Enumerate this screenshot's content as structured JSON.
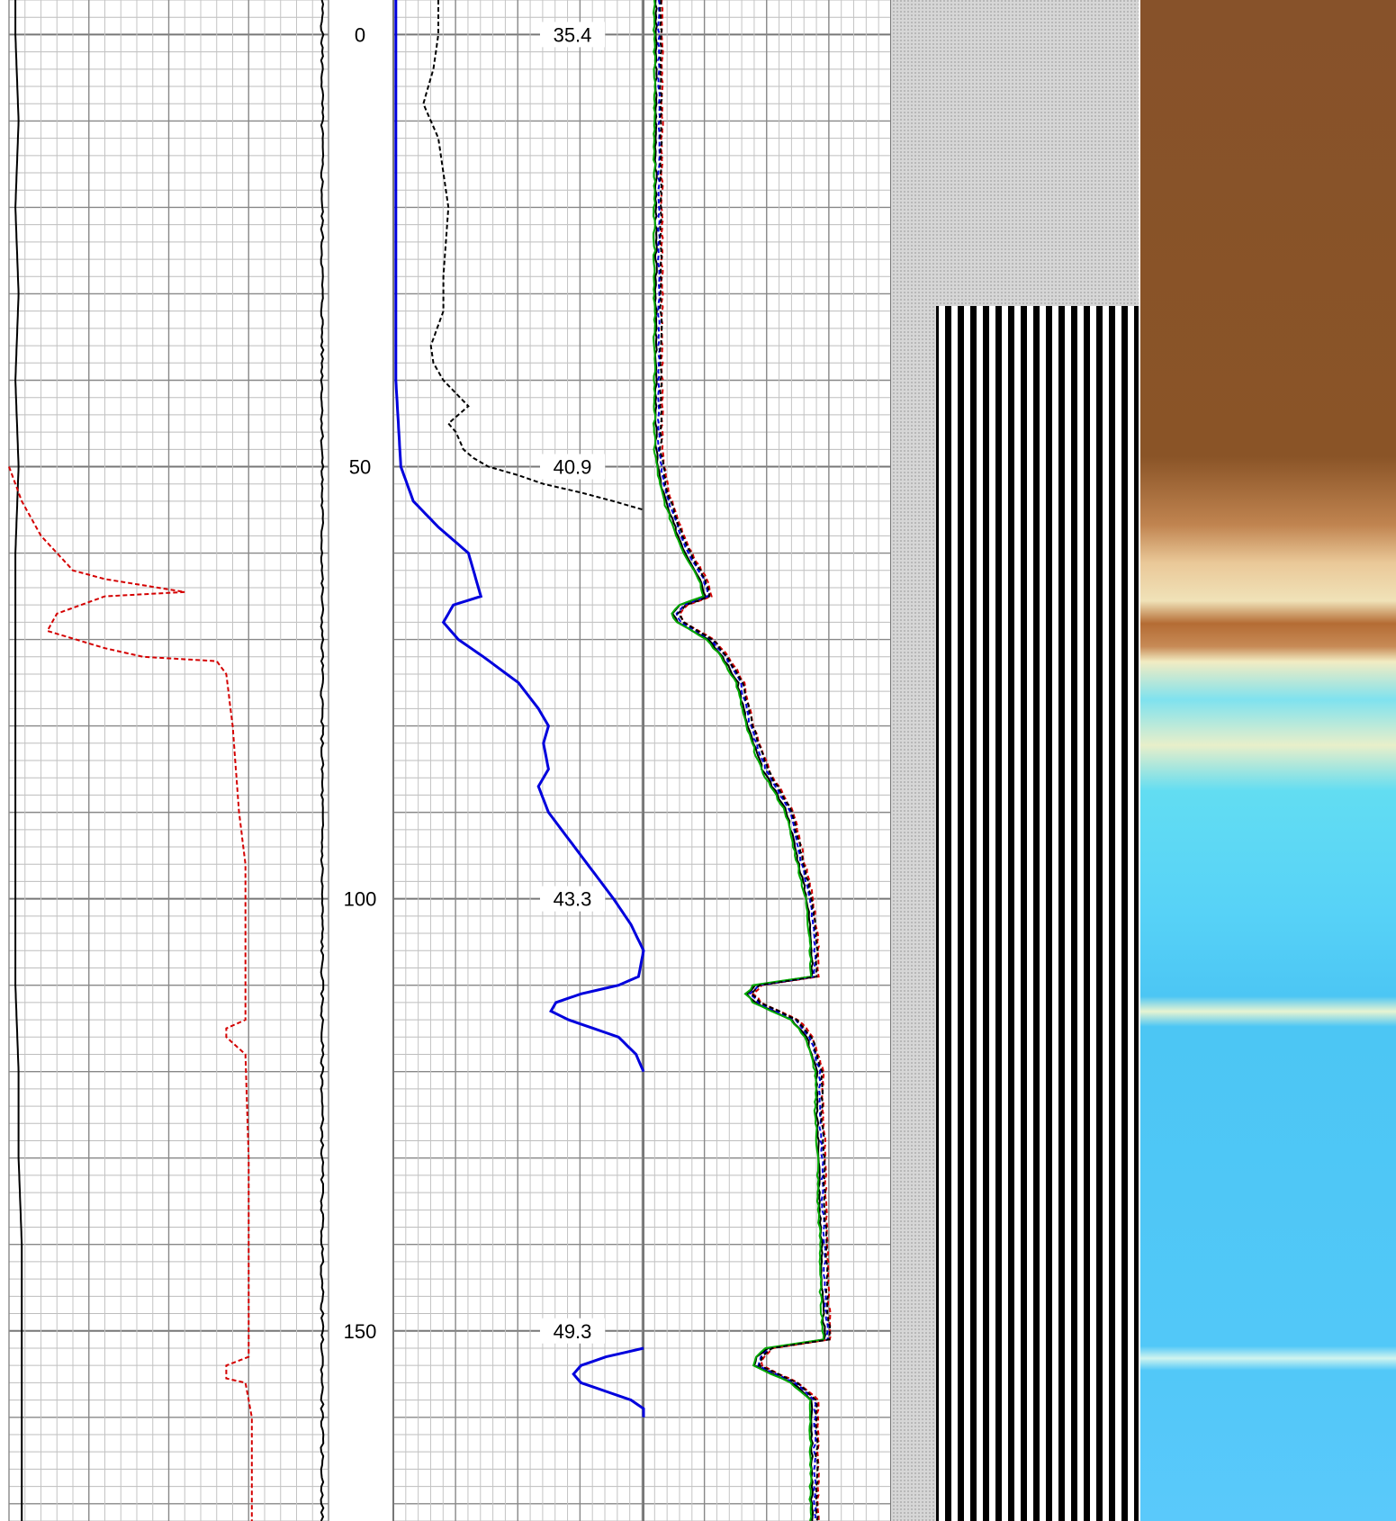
{
  "chart_data": {
    "type": "line",
    "title": "",
    "depth_axis": {
      "ticks": [
        "0",
        "50",
        "100",
        "150"
      ],
      "ylim": [
        -4,
        172
      ],
      "orientation": "depth increases downward"
    },
    "depth_markers": [
      {
        "depth": 0,
        "label": "35.4"
      },
      {
        "depth": 50,
        "label": "40.9"
      },
      {
        "depth": 100,
        "label": "43.3"
      },
      {
        "depth": 150,
        "label": "49.3"
      }
    ],
    "track1": {
      "series": [
        {
          "color": "#000000",
          "style": "solid",
          "depth": [
            -4,
            0,
            10,
            20,
            30,
            40,
            50,
            60,
            70,
            80,
            90,
            100,
            110,
            120,
            130,
            140,
            150,
            160,
            172
          ],
          "value": [
            0.02,
            0.02,
            0.03,
            0.02,
            0.03,
            0.02,
            0.03,
            0.02,
            0.02,
            0.02,
            0.02,
            0.02,
            0.02,
            0.03,
            0.03,
            0.04,
            0.04,
            0.04,
            0.04
          ]
        },
        {
          "color": "#d40000",
          "style": "dashed",
          "depth": [
            50,
            54,
            58,
            62,
            63,
            64.5,
            65,
            67,
            69,
            71,
            72,
            72.5,
            74,
            80,
            90,
            96,
            100,
            104,
            110,
            114,
            115,
            116,
            118,
            130,
            140,
            150,
            153,
            154,
            155.5,
            156,
            158,
            160,
            165,
            172
          ],
          "value": [
            0.0,
            0.04,
            0.1,
            0.2,
            0.3,
            0.55,
            0.3,
            0.15,
            0.12,
            0.3,
            0.42,
            0.65,
            0.68,
            0.7,
            0.72,
            0.74,
            0.74,
            0.74,
            0.74,
            0.74,
            0.68,
            0.68,
            0.74,
            0.75,
            0.75,
            0.75,
            0.75,
            0.68,
            0.68,
            0.74,
            0.75,
            0.76,
            0.76,
            0.76
          ]
        },
        {
          "color": "#000000",
          "style": "solid",
          "noisy": true,
          "depth": [
            -4,
            172
          ],
          "value": [
            0.98,
            0.98
          ]
        }
      ]
    },
    "track2": {
      "series": [
        {
          "color": "#0000dd",
          "style": "solid",
          "depth": [
            -4,
            0,
            10,
            20,
            30,
            40,
            45,
            50,
            54,
            57,
            60,
            63,
            65,
            66,
            68,
            70,
            72,
            75,
            78,
            80,
            82,
            85,
            87,
            90,
            95,
            100,
            103,
            106,
            109,
            110,
            111,
            112,
            113,
            114,
            115,
            116,
            118,
            120
          ],
          "value": [
            0.01,
            0.01,
            0.01,
            0.01,
            0.01,
            0.01,
            0.02,
            0.03,
            0.08,
            0.18,
            0.3,
            0.33,
            0.35,
            0.24,
            0.2,
            0.26,
            0.36,
            0.5,
            0.58,
            0.62,
            0.6,
            0.62,
            0.58,
            0.62,
            0.75,
            0.88,
            0.95,
            1.0,
            0.98,
            0.9,
            0.75,
            0.65,
            0.63,
            0.7,
            0.8,
            0.9,
            0.97,
            1.0
          ]
        },
        {
          "color": "#0000dd",
          "style": "solid",
          "depth": [
            152,
            153,
            154,
            155,
            156,
            157,
            158,
            159,
            160
          ],
          "value": [
            1.0,
            0.85,
            0.75,
            0.72,
            0.75,
            0.85,
            0.95,
            1.0,
            1.0
          ]
        },
        {
          "color": "#000000",
          "style": "dashed",
          "depth": [
            -4,
            0,
            4,
            8,
            12,
            16,
            20,
            24,
            28,
            32,
            36,
            38,
            40,
            43,
            45,
            46,
            48,
            49,
            50,
            51,
            52,
            53,
            54,
            55
          ],
          "value": [
            0.18,
            0.18,
            0.16,
            0.12,
            0.18,
            0.2,
            0.22,
            0.21,
            0.2,
            0.2,
            0.15,
            0.16,
            0.2,
            0.3,
            0.22,
            0.25,
            0.28,
            0.32,
            0.38,
            0.5,
            0.6,
            0.75,
            0.88,
            1.0
          ]
        }
      ]
    },
    "track3": {
      "series": [
        {
          "color": "#000000",
          "style": "solid",
          "depth": [
            -4,
            0,
            20,
            40,
            48,
            50,
            52,
            55,
            58,
            60,
            63,
            65,
            66,
            67,
            68,
            70,
            72,
            75,
            80,
            85,
            90,
            95,
            100,
            105,
            109,
            110,
            111,
            112,
            114,
            116,
            118,
            120,
            125,
            130,
            135,
            140,
            145,
            150,
            151,
            152,
            153,
            154,
            156,
            158,
            160,
            165,
            172
          ],
          "value": [
            0.05,
            0.05,
            0.05,
            0.05,
            0.05,
            0.06,
            0.07,
            0.1,
            0.14,
            0.17,
            0.23,
            0.25,
            0.15,
            0.12,
            0.14,
            0.26,
            0.32,
            0.38,
            0.42,
            0.48,
            0.58,
            0.62,
            0.66,
            0.68,
            0.68,
            0.45,
            0.42,
            0.45,
            0.6,
            0.66,
            0.68,
            0.7,
            0.7,
            0.71,
            0.71,
            0.72,
            0.72,
            0.73,
            0.73,
            0.5,
            0.46,
            0.45,
            0.6,
            0.68,
            0.68,
            0.68,
            0.68
          ]
        },
        {
          "color": "#d40000",
          "style": "dashed",
          "offset": 0.025
        },
        {
          "color": "#0000dd",
          "style": "dashed",
          "offset": 0.012
        },
        {
          "color": "#00aa00",
          "style": "solid",
          "offset": -0.006
        },
        {
          "color": "#000000",
          "style": "dashed",
          "offset": 0.02
        }
      ]
    },
    "track4": {
      "type": "image",
      "description": "waveform variable density display"
    },
    "track5": {
      "type": "image",
      "colormap": [
        "#8a5226",
        "#f2d9a8",
        "#4ec6f2"
      ]
    }
  }
}
